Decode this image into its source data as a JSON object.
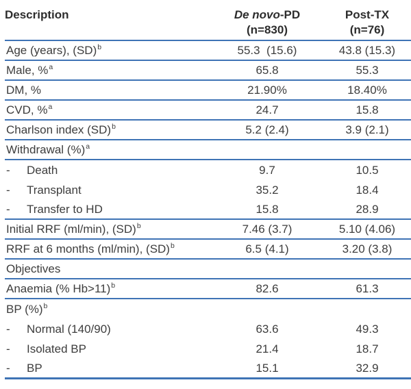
{
  "colors": {
    "rule": "#3e73b5",
    "text": "#3d3d3d",
    "heading": "#2d2d2d"
  },
  "table": {
    "header": {
      "description": "Description",
      "de_novo_italic": "De novo",
      "de_novo_suffix": "-PD",
      "de_novo_n": "(n=830)",
      "post_tx": "Post-TX",
      "post_tx_n": "(n=76)"
    },
    "rows": [
      {
        "label": "Age (years), (SD)",
        "sup": "b",
        "de_novo_pd": "55.3  (15.6)",
        "post_tx": "43.8 (15.3)"
      },
      {
        "label": "Male, %",
        "sup": "a",
        "de_novo_pd": "65.8",
        "post_tx": "55.3"
      },
      {
        "label": "DM, %",
        "de_novo_pd": "21.90%",
        "post_tx": "18.40%"
      },
      {
        "label": "CVD, %",
        "sup": "a",
        "de_novo_pd": "24.7",
        "post_tx": "15.8"
      },
      {
        "label": "Charlson index (SD)",
        "sup": "b",
        "de_novo_pd": "5.2 (2.4)",
        "post_tx": "3.9 (2.1)"
      },
      {
        "label": "Withdrawal (%)",
        "sup": "a",
        "de_novo_pd": "",
        "post_tx": ""
      },
      {
        "prefix": "-",
        "label": "Death",
        "de_novo_pd": "9.7",
        "post_tx": "10.5"
      },
      {
        "prefix": "-",
        "label": "Transplant",
        "de_novo_pd": "35.2",
        "post_tx": "18.4"
      },
      {
        "prefix": "-",
        "label": "Transfer to HD",
        "de_novo_pd": "15.8",
        "post_tx": "28.9"
      },
      {
        "label": "Initial RRF (ml/min), (SD)",
        "sup": "b",
        "de_novo_pd": "7.46 (3.7)",
        "post_tx": "5.10 (4.06)"
      },
      {
        "label": "RRF at 6 months (ml/min), (SD)",
        "sup": "b",
        "de_novo_pd": "6.5 (4.1)",
        "post_tx": "3.20 (3.8)"
      },
      {
        "label": "Objectives",
        "de_novo_pd": "",
        "post_tx": ""
      },
      {
        "label": "Anaemia (% Hb>11)",
        "sup": "b",
        "de_novo_pd": "82.6",
        "post_tx": "61.3"
      },
      {
        "label": "BP (%)",
        "sup": "b",
        "de_novo_pd": "",
        "post_tx": ""
      },
      {
        "prefix": "-",
        "label": "Normal (140/90)",
        "de_novo_pd": "63.6",
        "post_tx": "49.3"
      },
      {
        "prefix": "-",
        "label": "Isolated BP",
        "de_novo_pd": "21.4",
        "post_tx": "18.7"
      },
      {
        "prefix": "-",
        "label": "BP",
        "de_novo_pd": "15.1",
        "post_tx": "32.9"
      }
    ]
  }
}
